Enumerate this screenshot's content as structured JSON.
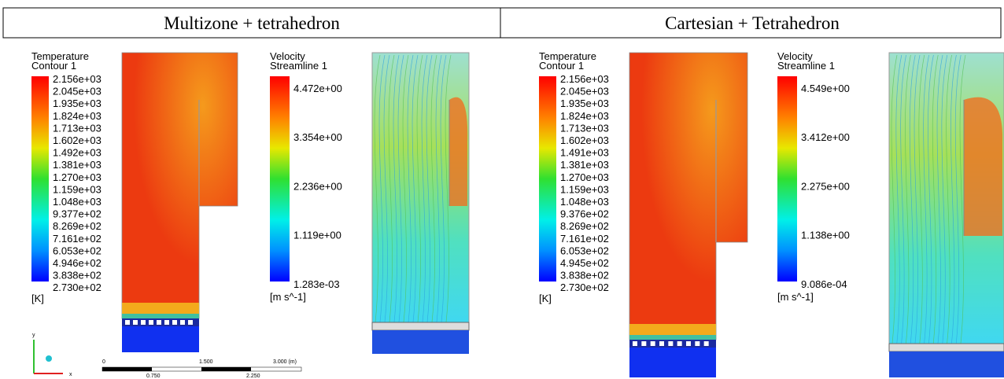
{
  "header": {
    "columns": [
      "Multizone + tetrahedron",
      "Cartesian + Tetrahedron"
    ]
  },
  "panels": [
    {
      "temperature": {
        "title": "Temperature",
        "subtitle": "Contour 1",
        "labels": [
          "2.156e+03",
          "2.045e+03",
          "1.935e+03",
          "1.824e+03",
          "1.713e+03",
          "1.602e+03",
          "1.492e+03",
          "1.381e+03",
          "1.270e+03",
          "1.159e+03",
          "1.048e+03",
          "9.377e+02",
          "8.269e+02",
          "7.161e+02",
          "6.053e+02",
          "4.946e+02",
          "3.838e+02",
          "2.730e+02"
        ],
        "unit": "[K]"
      },
      "velocity": {
        "title": "Velocity",
        "subtitle": "Streamline 1",
        "labels": [
          "4.472e+00",
          "3.354e+00",
          "2.236e+00",
          "1.119e+00",
          "1.283e-03"
        ],
        "unit": "[m s^-1]"
      },
      "axes": {
        "y": "y",
        "x": "x"
      },
      "scale_bar": {
        "labels": [
          "0",
          "1.500",
          "3.000 (m)"
        ],
        "sublabels": [
          "0.750",
          "2.250"
        ]
      }
    },
    {
      "temperature": {
        "title": "Temperature",
        "subtitle": "Contour 1",
        "labels": [
          "2.156e+03",
          "2.045e+03",
          "1.935e+03",
          "1.824e+03",
          "1.713e+03",
          "1.602e+03",
          "1.491e+03",
          "1.381e+03",
          "1.270e+03",
          "1.159e+03",
          "1.048e+03",
          "9.376e+02",
          "8.269e+02",
          "7.161e+02",
          "6.053e+02",
          "4.945e+02",
          "3.838e+02",
          "2.730e+02"
        ],
        "unit": "[K]"
      },
      "velocity": {
        "title": "Velocity",
        "subtitle": "Streamline 1",
        "labels": [
          "4.549e+00",
          "3.412e+00",
          "2.275e+00",
          "1.138e+00",
          "9.086e-04"
        ],
        "unit": "[m s^-1]"
      }
    }
  ]
}
